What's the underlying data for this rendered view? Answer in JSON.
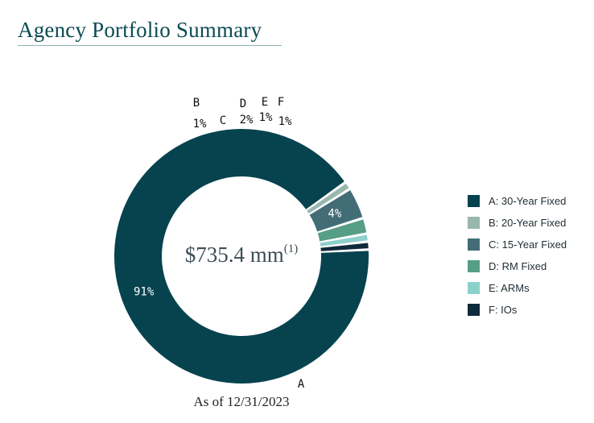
{
  "title": "Agency Portfolio Summary",
  "as_of": "As of 12/31/2023",
  "center_label": {
    "amount": "$735.4 mm",
    "footnote": "(1)"
  },
  "colors": {
    "title": "#0c4a52",
    "A": "#06434f",
    "B": "#98b8ae",
    "C": "#426d77",
    "D": "#569e86",
    "E": "#8dcfcb",
    "F": "#0e2a3a"
  },
  "chart_data": {
    "type": "pie",
    "donut": true,
    "title": "Agency Portfolio Summary",
    "legend_position": "right",
    "slices": [
      {
        "key": "A",
        "label": "A: 30-Year Fixed",
        "value": 91,
        "display": "91%",
        "color": "#06434f"
      },
      {
        "key": "B",
        "label": "B: 20-Year Fixed",
        "value": 1,
        "display": "1%",
        "color": "#98b8ae"
      },
      {
        "key": "C",
        "label": "C: 15-Year Fixed",
        "value": 4,
        "display": "4%",
        "color": "#426d77"
      },
      {
        "key": "D",
        "label": "D: RM Fixed",
        "value": 2,
        "display": "2%",
        "color": "#569e86"
      },
      {
        "key": "E",
        "label": "E: ARMs",
        "value": 1,
        "display": "1%",
        "color": "#8dcfcb"
      },
      {
        "key": "F",
        "label": "F: IOs",
        "value": 1,
        "display": "1%",
        "color": "#0e2a3a"
      }
    ]
  }
}
